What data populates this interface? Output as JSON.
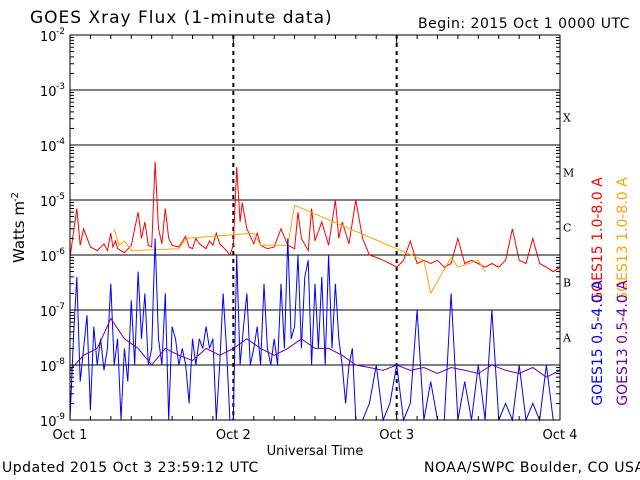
{
  "header": {
    "title": "GOES Xray Flux (1-minute data)",
    "begin": "Begin:  2015 Oct 1 0000 UTC"
  },
  "footer": {
    "updated": "Updated 2015 Oct  3 23:59:12 UTC",
    "credit": "NOAA/SWPC Boulder, CO USA"
  },
  "colors": {
    "goes15_long": "#ff0000",
    "goes13_long": "#ffa500",
    "goes15_short": "#0000ff",
    "goes13_short": "#6600aa",
    "grid": "#000000"
  },
  "chart_data": {
    "type": "line",
    "title": "GOES Xray Flux (1-minute data)",
    "xlabel": "Universal Time",
    "ylabel": "Watts m",
    "ylabel_superscript": "-2",
    "yscale": "log",
    "ylim": [
      1e-09,
      0.01
    ],
    "xlim": [
      0,
      72
    ],
    "x_ticks": [
      {
        "hour": 0,
        "label": "Oct 1"
      },
      {
        "hour": 24,
        "label": "Oct 2"
      },
      {
        "hour": 48,
        "label": "Oct 3"
      },
      {
        "hour": 72,
        "label": "Oct 4"
      }
    ],
    "y_ticks": [
      {
        "exp": -9,
        "label": "10",
        "sup": "-9"
      },
      {
        "exp": -8,
        "label": "10",
        "sup": "-8"
      },
      {
        "exp": -7,
        "label": "10",
        "sup": "-7"
      },
      {
        "exp": -6,
        "label": "10",
        "sup": "-6"
      },
      {
        "exp": -5,
        "label": "10",
        "sup": "-5"
      },
      {
        "exp": -4,
        "label": "10",
        "sup": "-4"
      },
      {
        "exp": -3,
        "label": "10",
        "sup": "-3"
      },
      {
        "exp": -2,
        "label": "10",
        "sup": "-2"
      }
    ],
    "flare_classes": [
      {
        "label": "A",
        "exp": -7.5
      },
      {
        "label": "B",
        "exp": -6.5
      },
      {
        "label": "C",
        "exp": -5.5
      },
      {
        "label": "M",
        "exp": -4.5
      },
      {
        "label": "X",
        "exp": -3.5
      }
    ],
    "legend": [
      "GOES15 1.0-8.0 A",
      "GOES13 1.0-8.0 A",
      "GOES15 0.5-4.0 A",
      "GOES13 0.5-4.0 A"
    ],
    "series": [
      {
        "name": "GOES15 1.0-8.0 A",
        "color": "#ff0000",
        "hours": [
          0,
          1,
          1.5,
          2,
          3,
          4,
          5,
          5.5,
          6,
          6.3,
          6.7,
          7,
          8,
          9,
          9.5,
          10,
          10.5,
          11,
          11.5,
          12,
          12.5,
          13,
          13.5,
          14,
          14.5,
          15,
          16,
          17,
          17.5,
          18,
          18.5,
          19,
          20,
          20.5,
          21,
          21.5,
          22,
          23,
          23.5,
          24,
          24.5,
          25,
          25.3,
          26,
          27,
          27.5,
          28,
          29,
          30,
          31,
          32,
          33,
          33.5,
          34,
          35,
          35.5,
          36,
          37,
          38,
          39,
          39.5,
          40,
          41,
          42,
          43,
          44,
          45,
          46,
          47,
          48,
          49,
          50,
          51,
          52,
          53,
          54,
          55,
          56,
          57,
          58,
          59,
          60,
          61,
          62,
          63,
          64,
          65,
          66,
          67,
          68,
          69,
          70,
          71,
          72
        ],
        "values": [
          9e-07,
          7e-06,
          1.5e-06,
          3e-06,
          1.4e-06,
          1.2e-06,
          1.6e-06,
          1.2e-06,
          2.5e-06,
          1.4e-06,
          1.8e-06,
          1.3e-06,
          1.1e-06,
          1.5e-06,
          3e-06,
          6e-06,
          2e-06,
          4e-06,
          1.5e-06,
          1.4e-06,
          5e-05,
          3e-06,
          1.6e-06,
          7e-06,
          2e-06,
          1.5e-06,
          1.4e-06,
          2.2e-06,
          1.4e-06,
          1.3e-06,
          2e-06,
          1.6e-06,
          1.3e-06,
          1.8e-06,
          1.5e-06,
          2.5e-06,
          1.6e-06,
          1.2e-06,
          1e-06,
          1.5e-06,
          4e-05,
          4e-06,
          9e-06,
          3e-06,
          1.6e-06,
          2.5e-06,
          1.5e-06,
          1.3e-06,
          1.4e-06,
          3e-06,
          1.5e-06,
          1.3e-06,
          6e-06,
          2e-06,
          1.2e-06,
          7e-06,
          1.8e-06,
          4e-06,
          1.5e-06,
          1e-05,
          2e-06,
          4e-06,
          1.6e-06,
          1e-05,
          2e-06,
          1e-06,
          9e-07,
          8e-07,
          7e-07,
          6e-07,
          8e-07,
          1.8e-06,
          7e-07,
          8e-07,
          7e-07,
          8e-07,
          6e-07,
          7e-07,
          2e-06,
          7e-07,
          8e-07,
          7e-07,
          6e-07,
          7e-07,
          6e-07,
          8e-07,
          3e-06,
          8e-07,
          7e-07,
          2e-06,
          7e-07,
          6e-07,
          5e-07,
          6e-07
        ]
      },
      {
        "name": "GOES13 1.0-8.0 A",
        "color": "#ffa500",
        "hours": [
          6.5,
          7.2,
          8,
          9,
          16,
          17,
          27,
          28,
          32,
          33,
          52,
          53,
          56,
          57,
          60,
          61
        ],
        "values": [
          3e-06,
          1.5e-06,
          1.8e-06,
          1.2e-06,
          1.3e-06,
          2e-06,
          2.5e-06,
          1.5e-06,
          1.5e-06,
          8e-06,
          8e-07,
          2e-07,
          9e-07,
          6e-07,
          8e-07,
          5e-07
        ]
      },
      {
        "name": "GOES15 0.5-4.0 A",
        "color": "#0000ff",
        "hours": [
          0,
          0.5,
          1,
          1.5,
          2,
          2.5,
          3,
          3.5,
          4,
          4.5,
          5,
          5.5,
          6,
          6.5,
          7,
          7.5,
          8,
          8.5,
          9,
          9.5,
          10,
          10.5,
          11,
          11.5,
          12,
          12.5,
          13,
          13.5,
          14,
          14.5,
          15,
          15.5,
          16,
          16.5,
          17,
          17.5,
          18,
          18.5,
          19,
          19.5,
          20,
          20.5,
          21,
          21.5,
          22,
          22.5,
          23,
          23.5,
          24,
          24.5,
          25,
          25.5,
          26,
          26.5,
          27,
          27.5,
          28,
          28.5,
          29,
          29.5,
          30,
          30.5,
          31,
          31.5,
          32,
          32.5,
          33,
          33.5,
          34,
          34.5,
          35,
          35.5,
          36,
          36.5,
          37,
          37.5,
          38,
          38.5,
          39,
          39.5,
          40,
          40.5,
          41,
          41.5,
          42,
          43,
          44,
          45,
          46,
          47,
          48,
          49,
          50,
          51,
          52,
          53,
          54,
          55,
          56,
          57,
          58,
          59,
          60,
          61,
          62,
          63,
          64,
          65,
          66,
          67,
          68,
          69,
          70,
          71,
          72
        ],
        "values": [
          1e-09,
          3e-08,
          4e-07,
          5e-09,
          2e-08,
          8e-08,
          1.5e-09,
          5e-08,
          1e-08,
          3e-08,
          8e-09,
          2e-08,
          3e-07,
          1e-08,
          3e-08,
          1e-09,
          2e-08,
          5e-09,
          1.5e-07,
          1e-08,
          5e-07,
          3e-08,
          2e-07,
          1e-08,
          2e-08,
          2e-06,
          3e-08,
          1e-08,
          2e-07,
          1e-09,
          5e-08,
          3e-08,
          1e-08,
          2e-08,
          1e-08,
          2e-09,
          3e-08,
          1e-08,
          3e-08,
          2e-08,
          5e-08,
          2e-08,
          3e-08,
          1e-09,
          1e-08,
          2e-07,
          2e-08,
          1e-09,
          1e-09,
          1e-06,
          1e-08,
          5e-08,
          2e-07,
          1e-08,
          2e-08,
          5e-08,
          1e-08,
          3e-07,
          2e-08,
          1e-08,
          3e-08,
          1e-08,
          3e-07,
          2e-08,
          2e-06,
          3e-08,
          5e-08,
          1e-06,
          2e-08,
          4e-07,
          8e-07,
          1e-08,
          3e-07,
          2e-08,
          4e-07,
          1e-08,
          1e-06,
          2e-08,
          3e-07,
          3e-08,
          1e-08,
          2e-09,
          1e-08,
          2e-08,
          1e-09,
          1e-09,
          2e-09,
          1e-08,
          1e-09,
          2e-09,
          1e-08,
          1e-09,
          2e-09,
          1e-07,
          1e-09,
          5e-09,
          1e-09,
          1e-09,
          2e-07,
          1e-09,
          5e-09,
          1e-09,
          1e-08,
          1e-09,
          1e-07,
          1e-09,
          2e-09,
          1e-09,
          1e-08,
          1e-09,
          2e-09,
          1e-09,
          1e-08,
          1e-09,
          1e-09
        ]
      },
      {
        "name": "GOES13 0.5-4.0 A",
        "color": "#6600aa",
        "hours": [
          0,
          2,
          4,
          6,
          8,
          10,
          12,
          14,
          16,
          18,
          20,
          22,
          24,
          26,
          28,
          30,
          32,
          34,
          36,
          38,
          40,
          42,
          44,
          46,
          48,
          50,
          52,
          54,
          56,
          58,
          60,
          62,
          64,
          66,
          68,
          70,
          72
        ],
        "values": [
          8e-09,
          1.5e-08,
          2e-08,
          7e-08,
          3e-08,
          2e-08,
          1e-08,
          2e-08,
          1.5e-08,
          1.2e-08,
          2e-08,
          1.5e-08,
          2e-08,
          3e-08,
          2e-08,
          1.5e-08,
          2e-08,
          3e-08,
          2e-08,
          2e-08,
          1.5e-08,
          1e-08,
          9e-09,
          8e-09,
          1e-08,
          8e-09,
          9e-09,
          7e-09,
          9e-09,
          8e-09,
          7e-09,
          1e-08,
          8e-09,
          7e-09,
          9e-09,
          6e-09,
          8e-09
        ]
      }
    ]
  }
}
